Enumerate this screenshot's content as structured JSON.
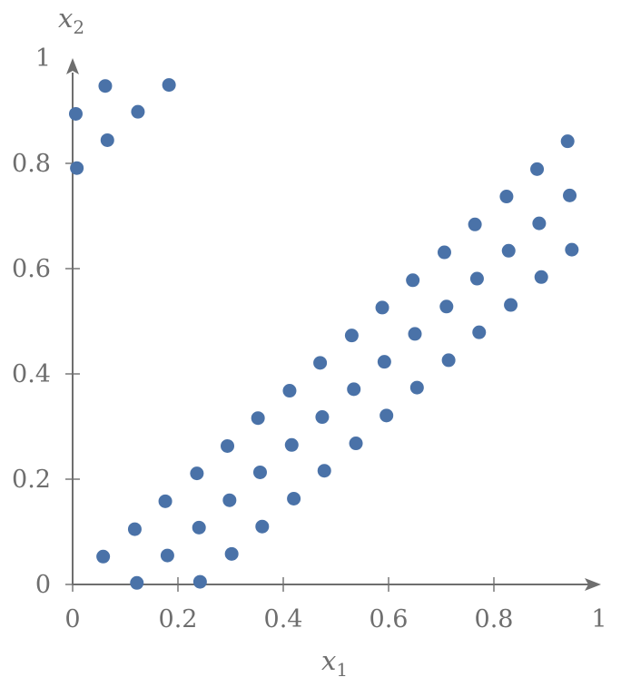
{
  "chart_data": {
    "type": "scatter",
    "title": "",
    "xlabel": "x",
    "xlabel_sub": "1",
    "ylabel": "x",
    "ylabel_sub": "2",
    "xlim": [
      0,
      1
    ],
    "ylim": [
      0,
      1
    ],
    "x_ticks": [
      0,
      0.2,
      0.4,
      0.6,
      0.8,
      1
    ],
    "x_tick_labels": [
      "0",
      "0.2",
      "0.4",
      "0.6",
      "0.8",
      "1"
    ],
    "y_ticks": [
      0,
      0.2,
      0.4,
      0.6,
      0.8,
      1
    ],
    "y_tick_labels": [
      "0",
      "0.2",
      "0.4",
      "0.6",
      "0.8",
      "1"
    ],
    "grid": false,
    "marker_color": "#4a72a8",
    "axis_color": "#6e6e6e",
    "points": [
      [
        0.006,
        0.894
      ],
      [
        0.062,
        0.947
      ],
      [
        0.124,
        0.898
      ],
      [
        0.183,
        0.949
      ],
      [
        0.008,
        0.791
      ],
      [
        0.066,
        0.844
      ],
      [
        0.058,
        0.053
      ],
      [
        0.118,
        0.105
      ],
      [
        0.176,
        0.158
      ],
      [
        0.236,
        0.211
      ],
      [
        0.294,
        0.263
      ],
      [
        0.352,
        0.316
      ],
      [
        0.412,
        0.368
      ],
      [
        0.47,
        0.421
      ],
      [
        0.53,
        0.473
      ],
      [
        0.588,
        0.526
      ],
      [
        0.646,
        0.578
      ],
      [
        0.706,
        0.631
      ],
      [
        0.764,
        0.684
      ],
      [
        0.824,
        0.737
      ],
      [
        0.882,
        0.789
      ],
      [
        0.94,
        0.842
      ],
      [
        0.122,
        0.003
      ],
      [
        0.18,
        0.055
      ],
      [
        0.24,
        0.108
      ],
      [
        0.298,
        0.16
      ],
      [
        0.356,
        0.213
      ],
      [
        0.416,
        0.265
      ],
      [
        0.474,
        0.318
      ],
      [
        0.534,
        0.371
      ],
      [
        0.592,
        0.423
      ],
      [
        0.65,
        0.476
      ],
      [
        0.71,
        0.528
      ],
      [
        0.768,
        0.581
      ],
      [
        0.828,
        0.634
      ],
      [
        0.886,
        0.686
      ],
      [
        0.944,
        0.739
      ],
      [
        0.242,
        0.005
      ],
      [
        0.302,
        0.058
      ],
      [
        0.36,
        0.11
      ],
      [
        0.42,
        0.163
      ],
      [
        0.478,
        0.216
      ],
      [
        0.538,
        0.268
      ],
      [
        0.596,
        0.321
      ],
      [
        0.654,
        0.374
      ],
      [
        0.714,
        0.426
      ],
      [
        0.772,
        0.479
      ],
      [
        0.832,
        0.531
      ],
      [
        0.89,
        0.584
      ],
      [
        0.948,
        0.636
      ]
    ]
  }
}
